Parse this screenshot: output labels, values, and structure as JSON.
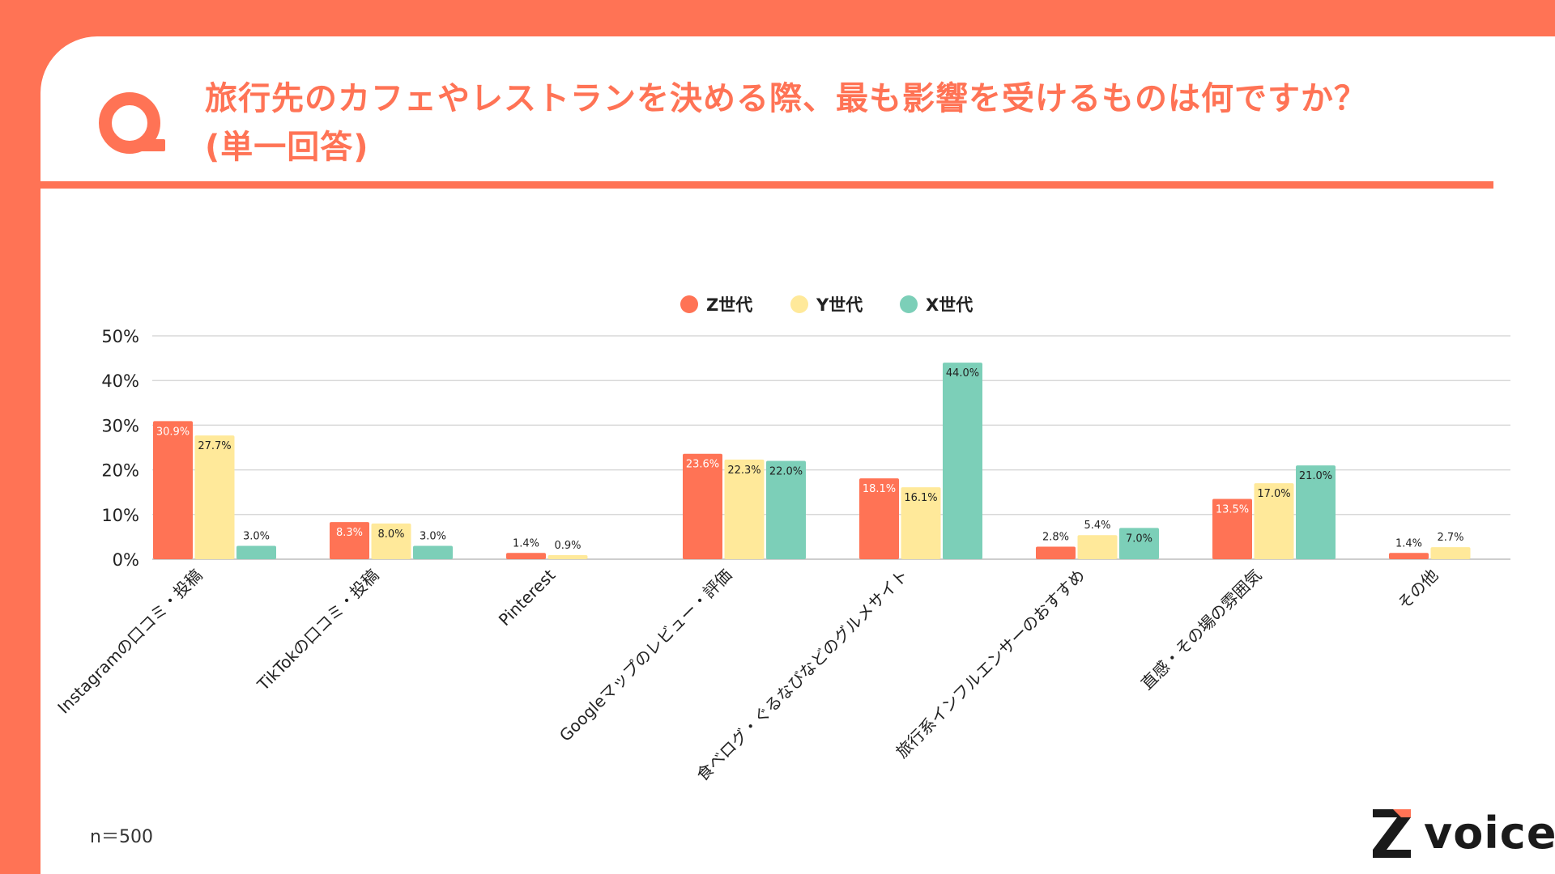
{
  "header": {
    "title_line1": "旅行先のカフェやレストランを決める際、最も影響を受けるものは何ですか？",
    "title_line2": "(単一回答)"
  },
  "footer": {
    "sample_size": "n＝500",
    "logo_text": "voice"
  },
  "colors": {
    "brand": "#FF7355",
    "z_gen": "#FF7355",
    "y_gen": "#FFE99A",
    "x_gen": "#7CCFB8",
    "grid": "#D8D8D8"
  },
  "chart_data": {
    "type": "bar",
    "title": "旅行先のカフェやレストランを決める際、最も影響を受けるものは何ですか？(単一回答)",
    "xlabel": "",
    "ylabel": "",
    "ylim": [
      0,
      50
    ],
    "yticks": [
      0,
      10,
      20,
      30,
      40,
      50
    ],
    "ytick_labels": [
      "0%",
      "10%",
      "20%",
      "30%",
      "40%",
      "50%"
    ],
    "grid": true,
    "legend_position": "top-center",
    "categories": [
      "Instagramの口コミ・投稿",
      "TikTokの口コミ・投稿",
      "Pinterest",
      "Googleマップのレビュー・評価",
      "食べログ・ぐるなびなどのグルメサイト",
      "旅行系インフルエンサーのおすすめ",
      "直感・その場の雰囲気",
      "その他"
    ],
    "series": [
      {
        "name": "Z世代",
        "color": "#FF7355",
        "values": [
          30.9,
          8.3,
          1.4,
          23.6,
          18.1,
          2.8,
          13.5,
          1.4
        ],
        "labels": [
          "30.9%",
          "8.3%",
          "1.4%",
          "23.6%",
          "18.1%",
          "2.8%",
          "13.5%",
          "1.4%"
        ]
      },
      {
        "name": "Y世代",
        "color": "#FFE99A",
        "values": [
          27.7,
          8.0,
          0.9,
          22.3,
          16.1,
          5.4,
          17.0,
          2.7
        ],
        "labels": [
          "27.7%",
          "8.0%",
          "0.9%",
          "22.3%",
          "16.1%",
          "5.4%",
          "17.0%",
          "2.7%"
        ]
      },
      {
        "name": "X世代",
        "color": "#7CCFB8",
        "values": [
          3.0,
          3.0,
          0,
          22.0,
          44.0,
          7.0,
          21.0,
          0
        ],
        "labels": [
          "3.0%",
          "3.0%",
          null,
          "22.0%",
          "44.0%",
          "7.0%",
          "21.0%",
          null
        ]
      }
    ]
  }
}
